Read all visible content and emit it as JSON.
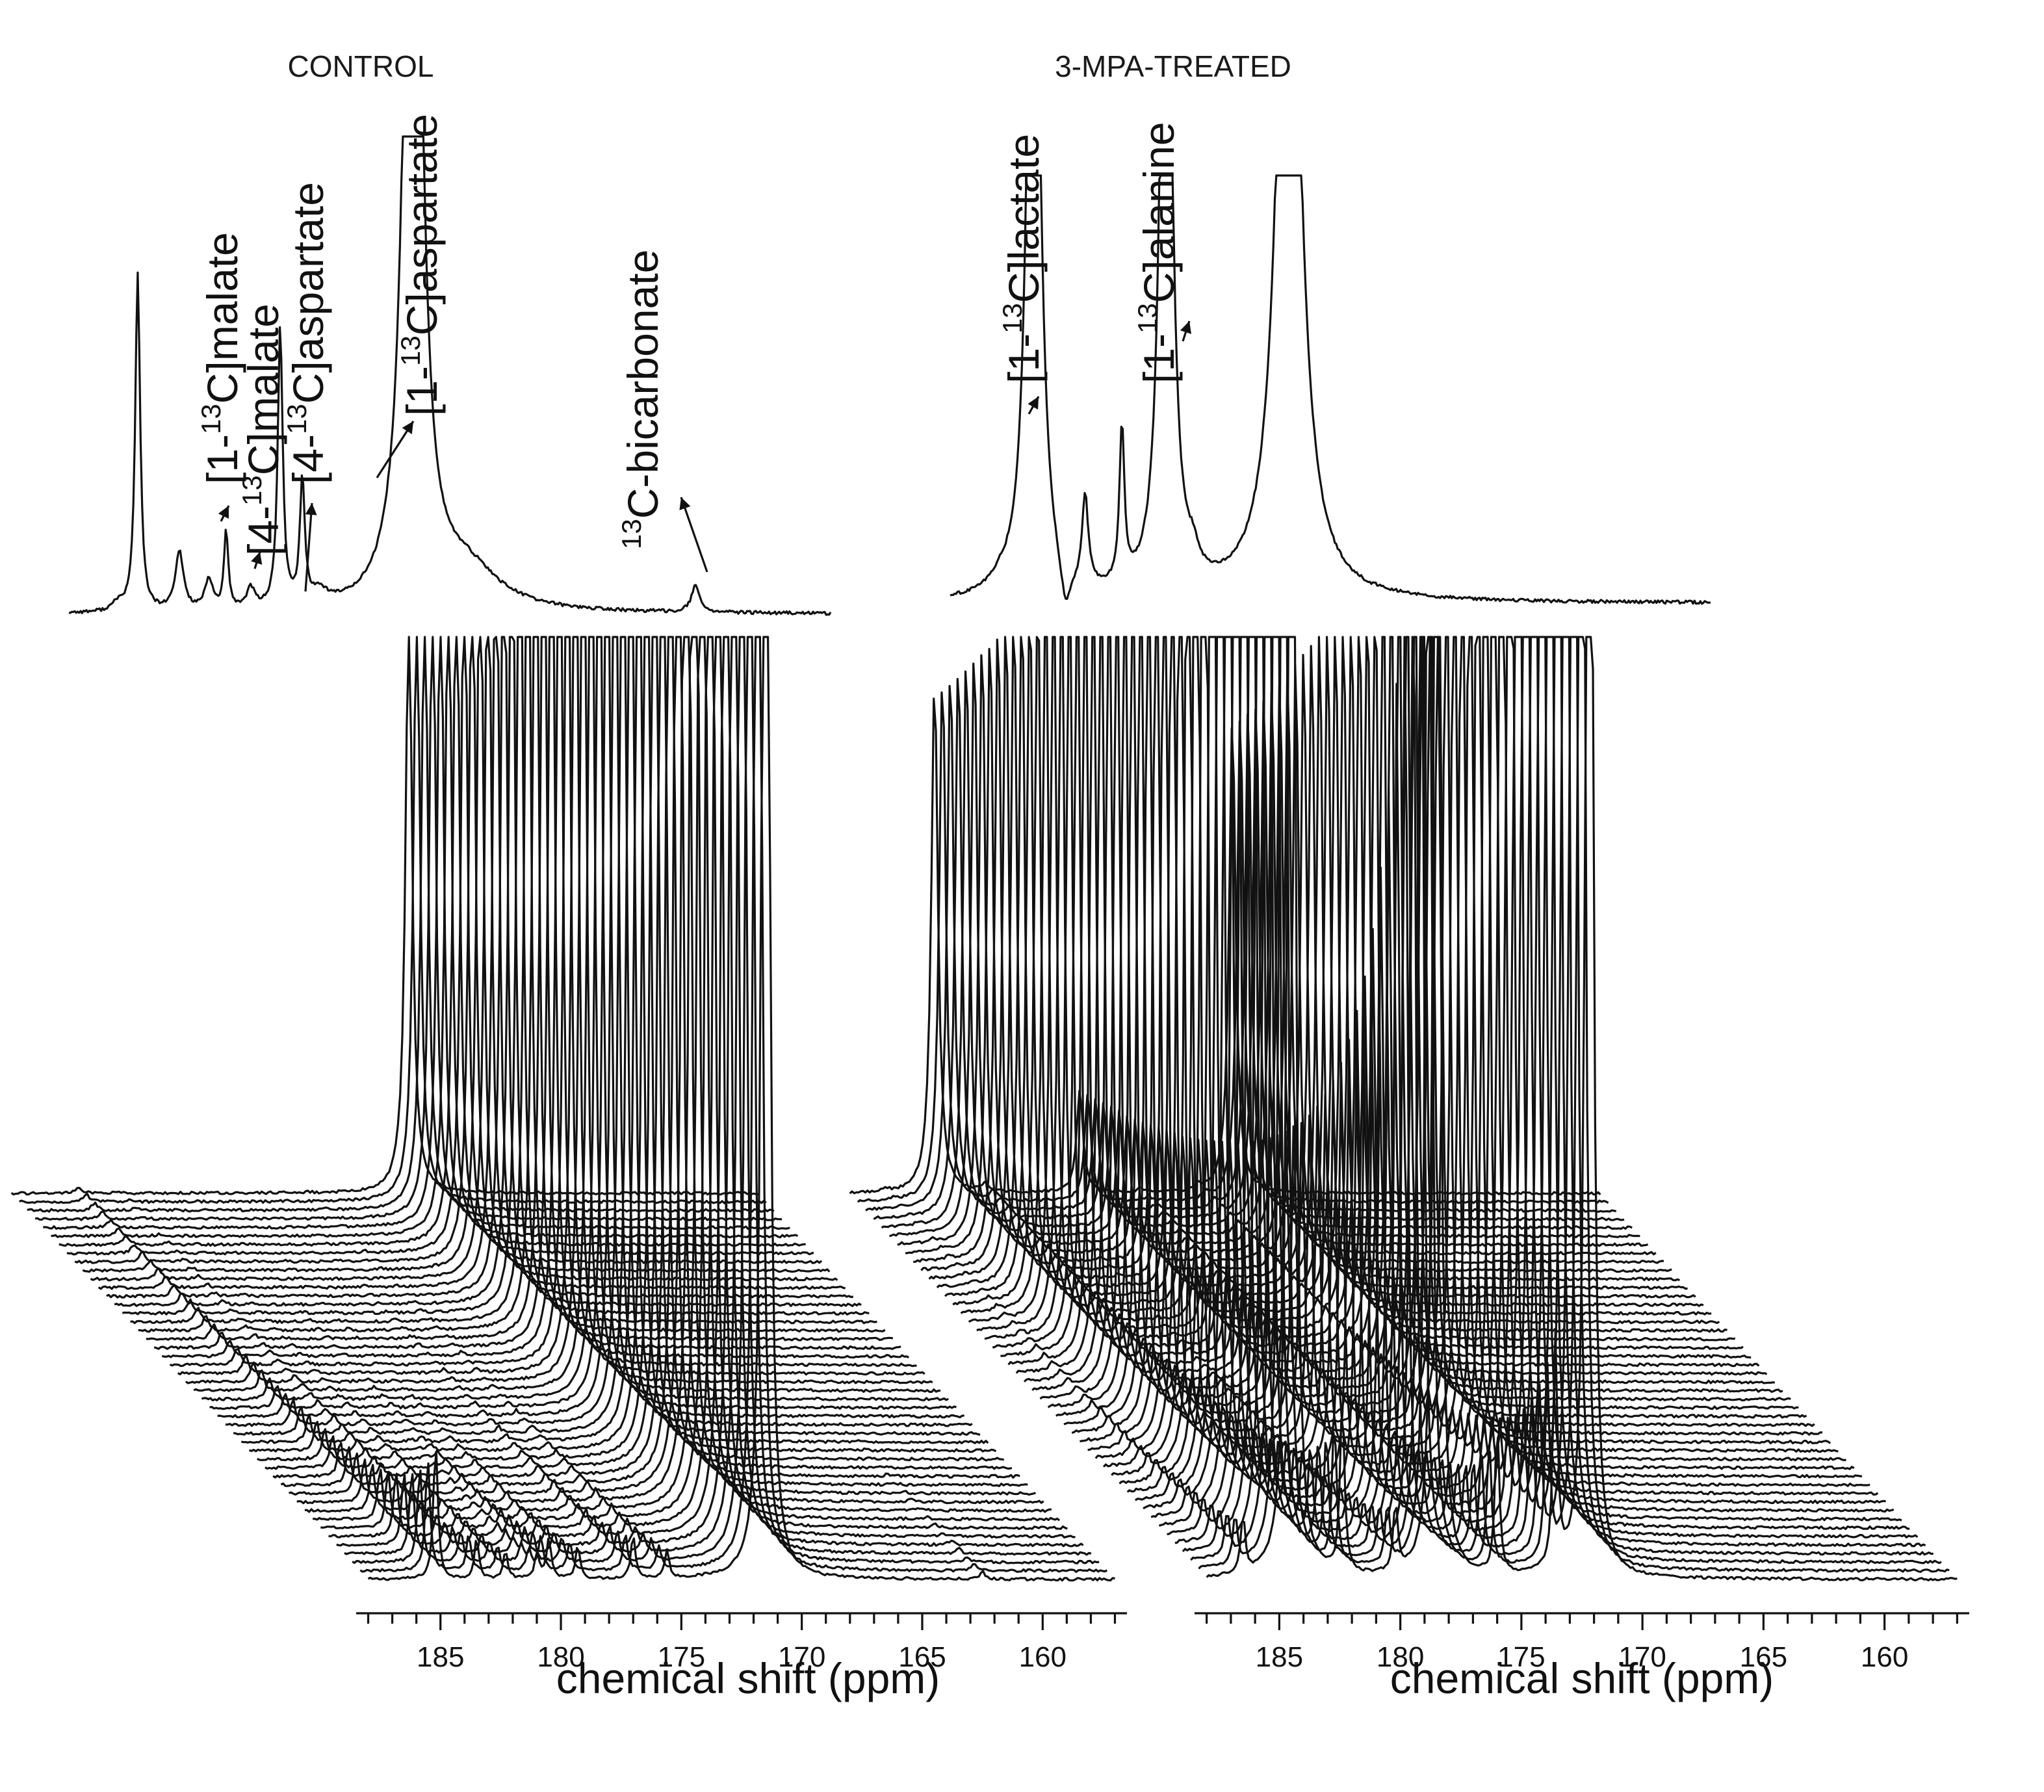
{
  "chart_data": [
    {
      "type": "line",
      "panel": "CONTROL",
      "title": "CONTROL",
      "xlabel": "chemical shift (ppm)",
      "x_reversed": true,
      "xlim": [
        188.5,
        156.5
      ],
      "x_ticks": [
        185,
        180,
        175,
        170,
        165,
        160
      ],
      "x_tick_labels": [
        "185",
        "180",
        "175",
        "170",
        "165",
        "160"
      ],
      "grid": false,
      "stacked_spectra_count": 46,
      "peaks": [
        {
          "label": "[1-13C]malate",
          "label_parts": [
            "[1-",
            "13",
            "C]malate"
          ],
          "ppm": 183.5
        },
        {
          "label": "[4-13C]malate",
          "label_parts": [
            "[4-",
            "13",
            "C]malate"
          ],
          "ppm": 182.3
        },
        {
          "label": "[4-13C]aspartate",
          "label_parts": [
            "[4-",
            "13",
            "C]aspartate"
          ],
          "ppm": 180.5
        },
        {
          "label": "[1-13C]aspartate",
          "label_parts": [
            "[1-",
            "13",
            "C]aspartate"
          ],
          "ppm": 177.0
        },
        {
          "label": "13C-bicarbonate",
          "label_parts": [
            "",
            "13",
            "C-bicarbonate"
          ],
          "ppm": 162.5
        }
      ],
      "unlabeled_peaks_ppm": [
        185.2,
        178.6,
        171.5
      ]
    },
    {
      "type": "line",
      "panel": "3-MPA-TREATED",
      "title": "3-MPA-TREATED",
      "xlabel": "chemical shift (ppm)",
      "x_reversed": true,
      "xlim": [
        188.5,
        156.5
      ],
      "x_ticks": [
        185,
        180,
        175,
        170,
        165,
        160
      ],
      "x_tick_labels": [
        "185",
        "180",
        "175",
        "170",
        "165",
        "160"
      ],
      "grid": false,
      "stacked_spectra_count": 46,
      "peaks": [
        {
          "label": "[1-13C]lactate",
          "label_parts": [
            "[1-",
            "13",
            "C]lactate"
          ],
          "ppm": 184.5
        },
        {
          "label": "[1-13C]alanine",
          "label_parts": [
            "[1-",
            "13",
            "C]alanine"
          ],
          "ppm": 178.5
        }
      ],
      "unlabeled_peaks_ppm": [
        182.4,
        180.2,
        172.2
      ]
    }
  ]
}
